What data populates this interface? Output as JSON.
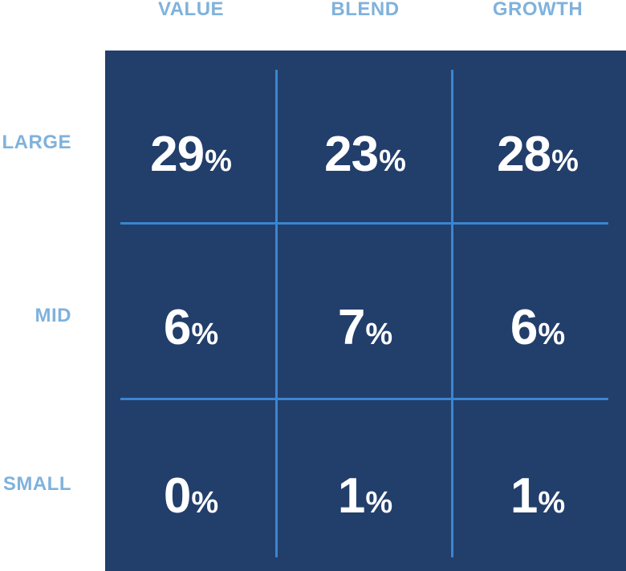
{
  "chart_data": {
    "type": "heatmap",
    "columns": [
      "VALUE",
      "BLEND",
      "GROWTH"
    ],
    "rows": [
      "LARGE",
      "MID",
      "SMALL"
    ],
    "values": [
      [
        29,
        23,
        28
      ],
      [
        6,
        7,
        6
      ],
      [
        0,
        1,
        1
      ]
    ],
    "unit": "%"
  },
  "colors": {
    "background": "#223e6b",
    "label": "#7fb2dc",
    "gridline": "#3a86d1",
    "value_text": "#ffffff"
  }
}
